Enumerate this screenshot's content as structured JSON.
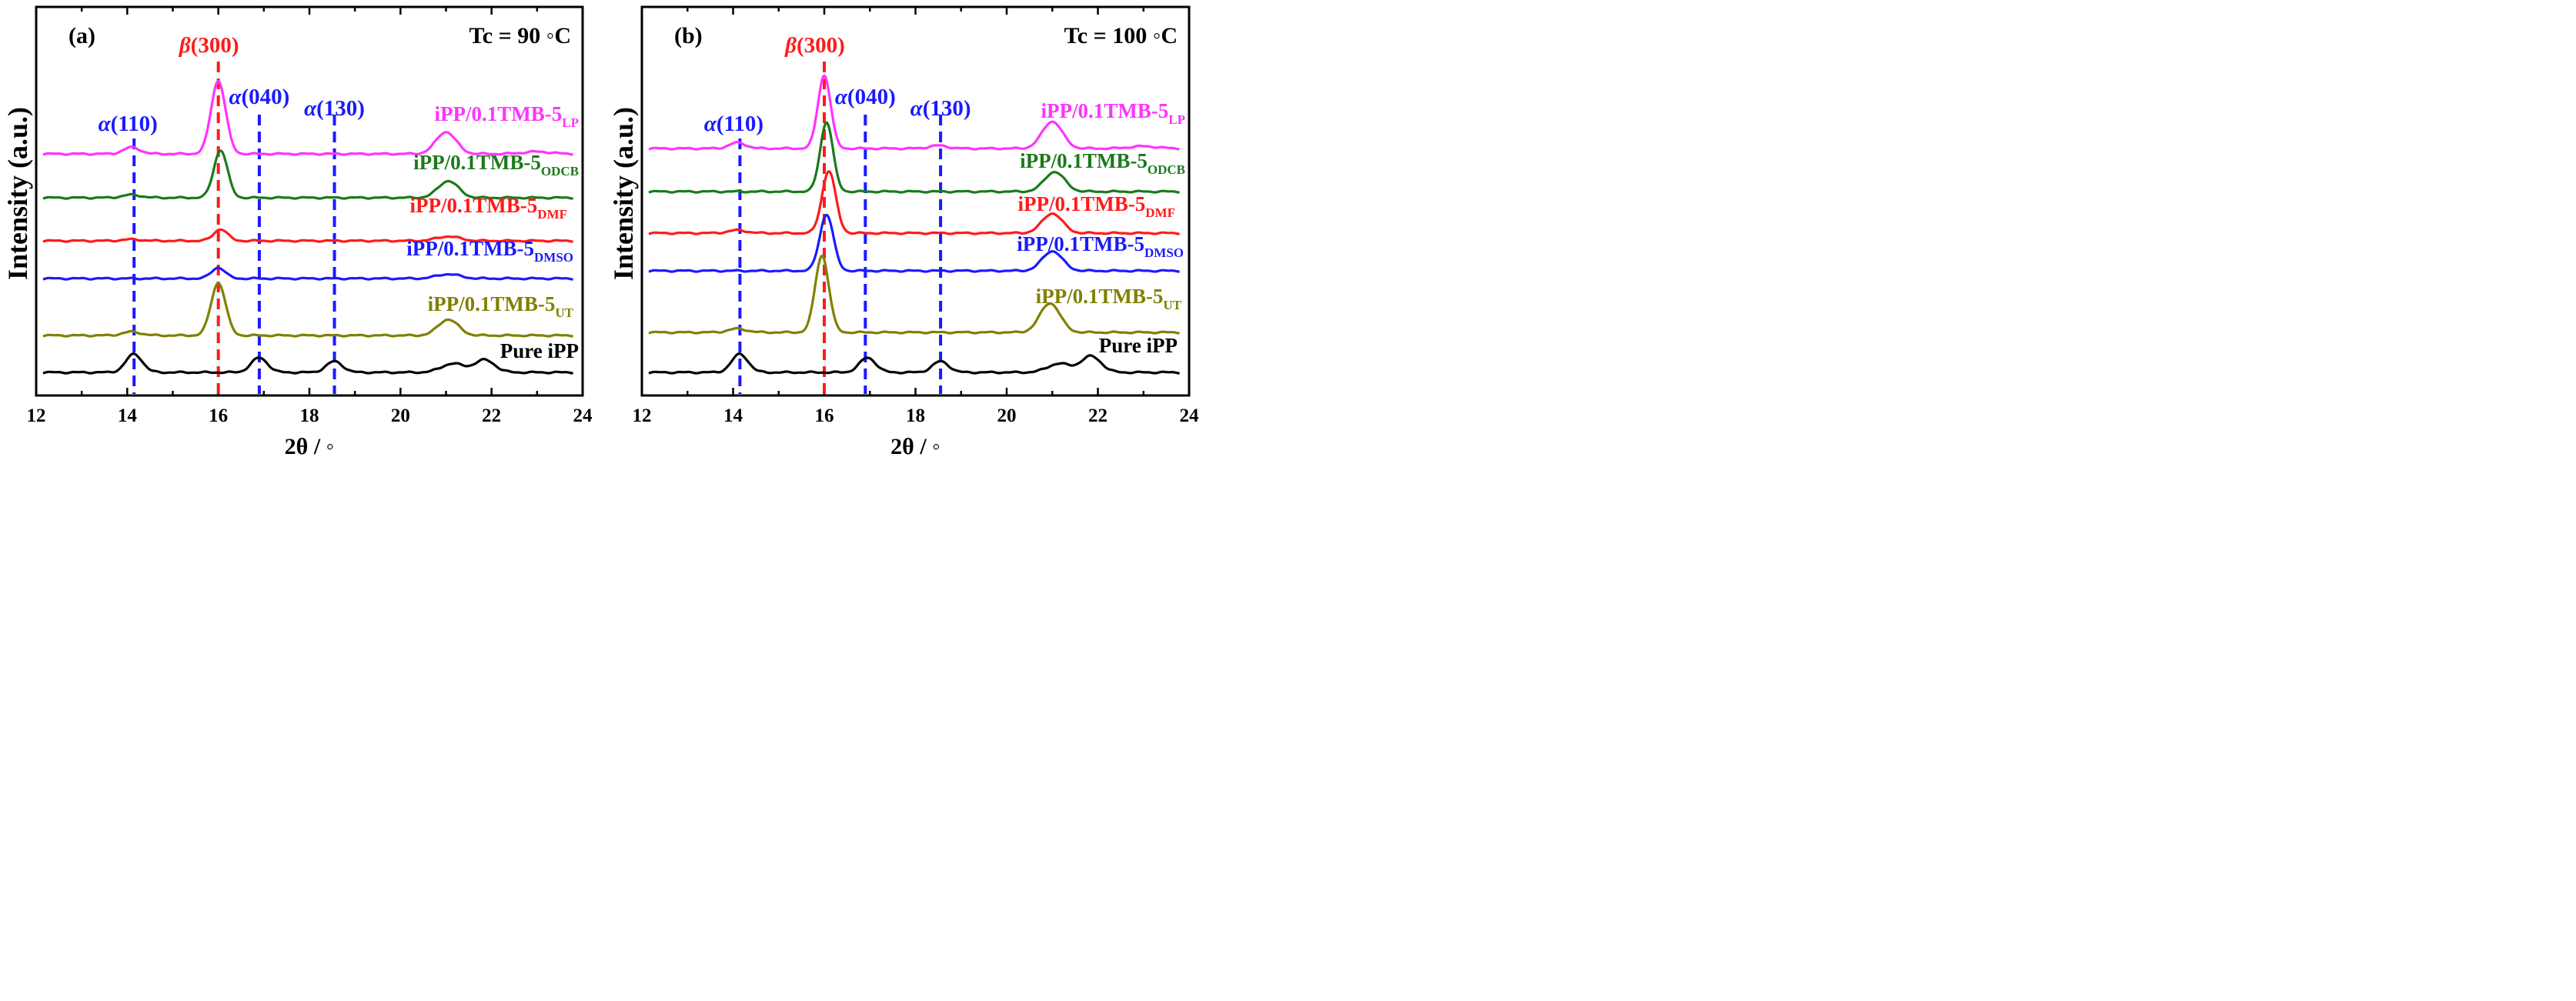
{
  "chart_data": [
    {
      "type": "line",
      "panel_label": "(a)",
      "condition": "Tc = 90 ◦C",
      "xlabel": "2θ / ◦",
      "ylabel": "Intensity (a.u.)",
      "xlim": [
        12,
        24
      ],
      "x_ticks": [
        12,
        14,
        16,
        18,
        20,
        22,
        24
      ],
      "peak_markers": [
        {
          "prefix": "α",
          "hkl": "(110)",
          "x": 14.15,
          "color": "#1a1aff"
        },
        {
          "prefix": "β",
          "hkl": "(300)",
          "x": 16.0,
          "color": "#ff1a1a"
        },
        {
          "prefix": "α",
          "hkl": "(040)",
          "x": 16.9,
          "color": "#1a1aff"
        },
        {
          "prefix": "α",
          "hkl": "(130)",
          "x": 18.55,
          "color": "#1a1aff"
        }
      ],
      "series": [
        {
          "base": "iPP/0.1TMB-5",
          "sub": "LP",
          "color": "#ff33ff",
          "peaks": [
            [
              14.1,
              9,
              0.18
            ],
            [
              16.0,
              100,
              0.16
            ],
            [
              21.0,
              30,
              0.22
            ],
            [
              23.0,
              3,
              0.3
            ]
          ]
        },
        {
          "base": "iPP/0.1TMB-5",
          "sub": "ODCB",
          "color": "#1a7a1a",
          "peaks": [
            [
              14.1,
              4,
              0.2
            ],
            [
              16.05,
              65,
              0.15
            ],
            [
              21.05,
              23,
              0.22
            ]
          ]
        },
        {
          "base": "iPP/0.1TMB-5",
          "sub": "DMF",
          "color": "#ff1a1a",
          "peaks": [
            [
              14.1,
              2,
              0.2
            ],
            [
              16.05,
              16,
              0.15
            ],
            [
              21.05,
              6,
              0.25
            ]
          ]
        },
        {
          "base": "iPP/0.1TMB-5",
          "sub": "DMSO",
          "color": "#1a1aff",
          "peaks": [
            [
              16.0,
              15,
              0.15
            ],
            [
              21.05,
              6,
              0.25
            ]
          ]
        },
        {
          "base": "iPP/0.1TMB-5",
          "sub": "UT",
          "color": "#808000",
          "peaks": [
            [
              14.1,
              5,
              0.2
            ],
            [
              16.0,
              72,
              0.16
            ],
            [
              21.05,
              22,
              0.22
            ]
          ]
        },
        {
          "base": "Pure iPP",
          "sub": "",
          "color": "#000000",
          "peaks": [
            [
              14.15,
              25,
              0.18
            ],
            [
              16.9,
              20,
              0.18
            ],
            [
              18.55,
              15,
              0.18
            ],
            [
              21.15,
              12,
              0.25
            ],
            [
              21.85,
              17,
              0.22
            ]
          ]
        }
      ]
    },
    {
      "type": "line",
      "panel_label": "(b)",
      "condition": "Tc = 100 ◦C",
      "xlabel": "2θ / ◦",
      "ylabel": "Intensity (a.u.)",
      "xlim": [
        12,
        24
      ],
      "x_ticks": [
        12,
        14,
        16,
        18,
        20,
        22,
        24
      ],
      "peak_markers": [
        {
          "prefix": "α",
          "hkl": "(110)",
          "x": 14.15,
          "color": "#1a1aff"
        },
        {
          "prefix": "β",
          "hkl": "(300)",
          "x": 16.0,
          "color": "#ff1a1a"
        },
        {
          "prefix": "α",
          "hkl": "(040)",
          "x": 16.9,
          "color": "#1a1aff"
        },
        {
          "prefix": "α",
          "hkl": "(130)",
          "x": 18.55,
          "color": "#1a1aff"
        }
      ],
      "series": [
        {
          "base": "iPP/0.1TMB-5",
          "sub": "LP",
          "color": "#ff33ff",
          "peaks": [
            [
              14.1,
              8,
              0.18
            ],
            [
              16.0,
              100,
              0.14
            ],
            [
              18.5,
              4,
              0.2
            ],
            [
              21.0,
              37,
              0.22
            ],
            [
              23.0,
              3,
              0.3
            ]
          ]
        },
        {
          "base": "iPP/0.1TMB-5",
          "sub": "ODCB",
          "color": "#1a7a1a",
          "peaks": [
            [
              16.05,
              95,
              0.14
            ],
            [
              21.05,
              27,
              0.22
            ]
          ]
        },
        {
          "base": "iPP/0.1TMB-5",
          "sub": "DMF",
          "color": "#ff1a1a",
          "peaks": [
            [
              14.1,
              4,
              0.2
            ],
            [
              16.1,
              85,
              0.15
            ],
            [
              21.0,
              27,
              0.22
            ]
          ]
        },
        {
          "base": "iPP/0.1TMB-5",
          "sub": "DMSO",
          "color": "#1a1aff",
          "peaks": [
            [
              16.05,
              77,
              0.15
            ],
            [
              21.0,
              27,
              0.22
            ]
          ]
        },
        {
          "base": "iPP/0.1TMB-5",
          "sub": "UT",
          "color": "#808000",
          "peaks": [
            [
              14.1,
              5,
              0.2
            ],
            [
              15.95,
              105,
              0.15
            ],
            [
              20.95,
              40,
              0.22
            ]
          ]
        },
        {
          "base": "Pure iPP",
          "sub": "",
          "color": "#000000",
          "peaks": [
            [
              14.15,
              25,
              0.18
            ],
            [
              16.95,
              20,
              0.18
            ],
            [
              18.55,
              15,
              0.18
            ],
            [
              21.15,
              12,
              0.25
            ],
            [
              21.85,
              22,
              0.22
            ]
          ]
        }
      ]
    }
  ]
}
